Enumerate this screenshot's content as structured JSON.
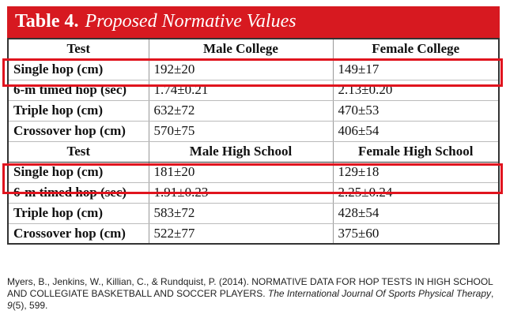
{
  "header": {
    "label": "Table 4.",
    "title": "Proposed Normative Values"
  },
  "table": {
    "sections": [
      {
        "columns": [
          "Test",
          "Male College",
          "Female College"
        ],
        "rows": [
          [
            "Single hop (cm)",
            "192±20",
            "149±17"
          ],
          [
            "6-m timed hop (sec)",
            "1.74±0.21",
            "2.13±0.20"
          ],
          [
            "Triple hop (cm)",
            "632±72",
            "470±53"
          ],
          [
            "Crossover hop (cm)",
            "570±75",
            "406±54"
          ]
        ]
      },
      {
        "columns": [
          "Test",
          "Male High School",
          "Female High School"
        ],
        "rows": [
          [
            "Single hop (cm)",
            "181±20",
            "129±18"
          ],
          [
            "6-m timed hop (sec)",
            "1.91±0.23",
            "2.25±0.24"
          ],
          [
            "Triple hop (cm)",
            "583±72",
            "428±54"
          ],
          [
            "Crossover hop (cm)",
            "522±77",
            "375±60"
          ]
        ]
      }
    ]
  },
  "citation": [
    {
      "text": "Myers, B., Jenkins, W., Killian, C., & Rundquist, P. (2014). NORMATIVE DATA FOR HOP TESTS IN HIGH SCHOOL AND COLLEGIATE BASKETBALL AND SOCCER PLAYERS. ",
      "italic": false
    },
    {
      "text": "The International Journal Of Sports Physical Therapy",
      "italic": true
    },
    {
      "text": ", ",
      "italic": false
    },
    {
      "text": "9",
      "italic": true
    },
    {
      "text": "(5), 599.",
      "italic": false
    }
  ]
}
